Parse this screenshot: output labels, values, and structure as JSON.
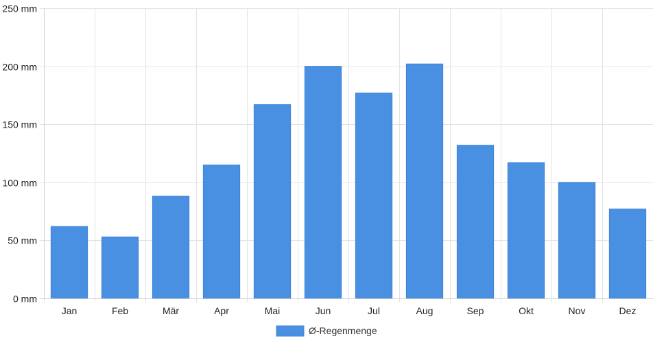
{
  "chart_data": {
    "type": "bar",
    "title": "",
    "xlabel": "",
    "ylabel": "",
    "categories": [
      "Jan",
      "Feb",
      "Mär",
      "Apr",
      "Mai",
      "Jun",
      "Jul",
      "Aug",
      "Sep",
      "Okt",
      "Nov",
      "Dez"
    ],
    "series": [
      {
        "name": "Ø-Regenmenge",
        "color": "#4a90e2",
        "values": [
          62,
          53,
          88,
          115,
          167,
          200,
          177,
          202,
          132,
          117,
          100,
          77
        ]
      }
    ],
    "ylim": [
      0,
      250
    ],
    "yticks": [
      0,
      50,
      100,
      150,
      200,
      250
    ],
    "ytick_labels": [
      "0 mm",
      "50 mm",
      "100 mm",
      "150 mm",
      "200 mm",
      "250 mm"
    ],
    "grid": true,
    "legend_position": "bottom-center"
  }
}
